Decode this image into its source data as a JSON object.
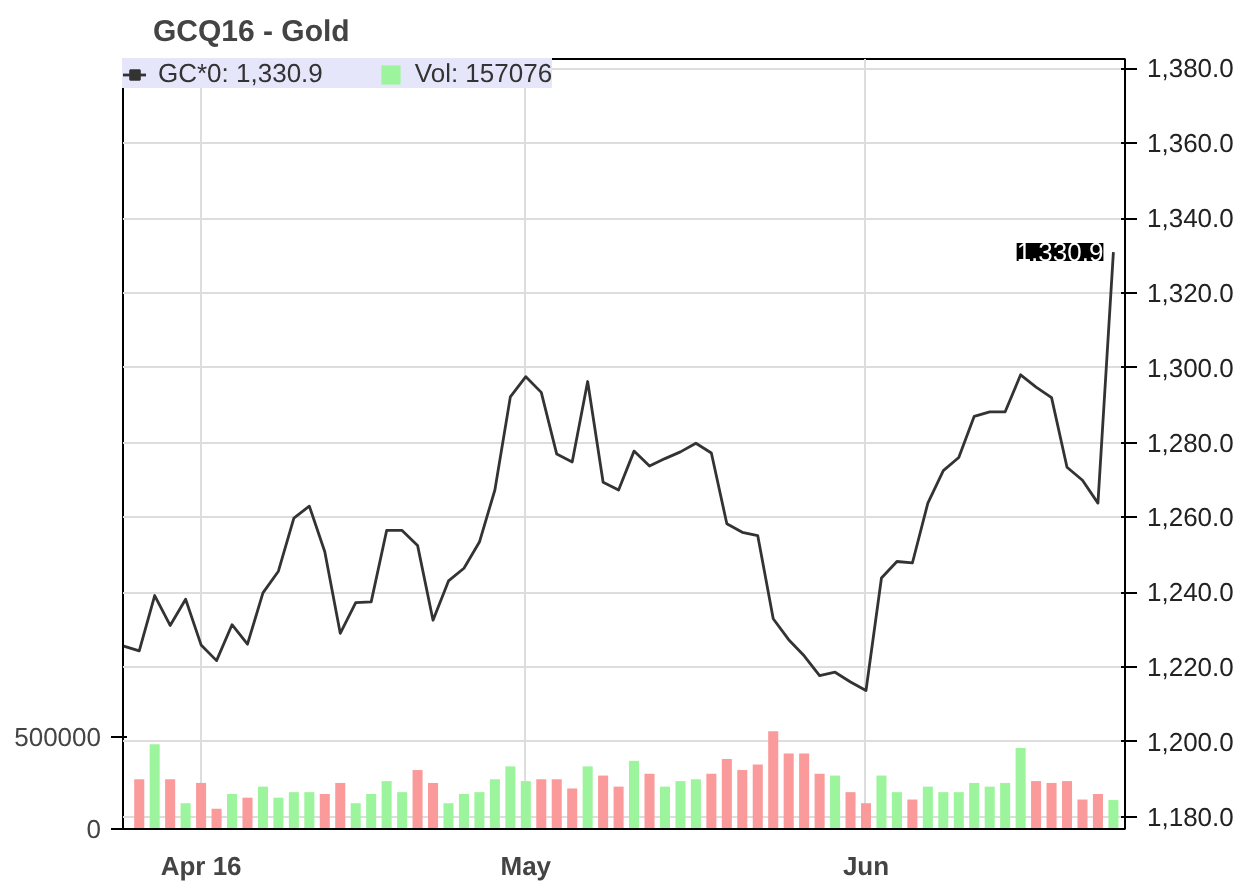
{
  "chart_data": {
    "type": "line",
    "title": "GCQ16 - Gold",
    "categories": [
      null,
      null,
      null,
      null,
      null,
      "Apr 16",
      null,
      null,
      null,
      null,
      null,
      null,
      null,
      null,
      null,
      null,
      null,
      null,
      null,
      null,
      null,
      null,
      null,
      null,
      null,
      null,
      "May",
      null,
      null,
      null,
      null,
      null,
      null,
      null,
      null,
      null,
      null,
      null,
      null,
      null,
      null,
      null,
      null,
      null,
      null,
      null,
      null,
      null,
      "Jun",
      null,
      null,
      null,
      null,
      null,
      null,
      null,
      null,
      null,
      null,
      null,
      null,
      null,
      null,
      null,
      null
    ],
    "series": [
      {
        "name": "GC*0: 1,330.9",
        "axis": "y",
        "color": "#333333",
        "values": [
          1225.6,
          1224.3,
          1239.1,
          1231.1,
          1238.1,
          1225.9,
          1221.7,
          1231.3,
          1226.1,
          1239.8,
          1245.6,
          1259.8,
          1263,
          1250.8,
          1229,
          1237.2,
          1237.4,
          1256.5,
          1256.5,
          1252.5,
          1232.5,
          1243,
          1246.4,
          1253.4,
          1267.3,
          1292.2,
          1297.6,
          1293.4,
          1276.9,
          1274.8,
          1296.3,
          1269.4,
          1267.3,
          1277.7,
          1273.7,
          1275.7,
          1277.5,
          1279.8,
          1277.2,
          1258.3,
          1256,
          1255.1,
          1232.9,
          1227.3,
          1223,
          1217.7,
          1218.6,
          1216,
          1213.7,
          1243.8,
          1248.2,
          1247.8,
          1263.8,
          1272.5,
          1276,
          1287,
          1288.2,
          1288.2,
          1298.1,
          1294.8,
          1292,
          1273.4,
          1269.9,
          1263.8,
          1330.9
        ]
      },
      {
        "name": "Vol: 157076",
        "type": "bar",
        "axis": "y2",
        "color": "#9cf59c",
        "values": [
          null,
          270000,
          460000,
          270000,
          140000,
          250000,
          110000,
          190000,
          170000,
          230000,
          170000,
          200000,
          200000,
          190000,
          250000,
          140000,
          190000,
          260000,
          200000,
          320000,
          250000,
          140000,
          190000,
          200000,
          270000,
          340000,
          260000,
          270000,
          270000,
          220000,
          340000,
          290000,
          230000,
          370000,
          300000,
          230000,
          260000,
          270000,
          300000,
          380000,
          320000,
          350000,
          530000,
          410000,
          410000,
          300000,
          290000,
          200000,
          140000,
          290000,
          200000,
          160000,
          230000,
          200000,
          200000,
          250000,
          230000,
          250000,
          440000,
          260000,
          250000,
          260000,
          160000,
          190000,
          157076
        ],
        "colors": [
          null,
          "#fa9a9a",
          "#9cf59c",
          "#fa9a9a",
          "#9cf59c",
          "#fa9a9a",
          "#fa9a9a",
          "#9cf59c",
          "#fa9a9a",
          "#9cf59c",
          "#9cf59c",
          "#9cf59c",
          "#9cf59c",
          "#fa9a9a",
          "#fa9a9a",
          "#9cf59c",
          "#9cf59c",
          "#9cf59c",
          "#9cf59c",
          "#fa9a9a",
          "#fa9a9a",
          "#9cf59c",
          "#9cf59c",
          "#9cf59c",
          "#9cf59c",
          "#9cf59c",
          "#9cf59c",
          "#fa9a9a",
          "#fa9a9a",
          "#fa9a9a",
          "#9cf59c",
          "#fa9a9a",
          "#fa9a9a",
          "#9cf59c",
          "#fa9a9a",
          "#9cf59c",
          "#9cf59c",
          "#9cf59c",
          "#fa9a9a",
          "#fa9a9a",
          "#fa9a9a",
          "#fa9a9a",
          "#fa9a9a",
          "#fa9a9a",
          "#fa9a9a",
          "#fa9a9a",
          "#9cf59c",
          "#fa9a9a",
          "#fa9a9a",
          "#9cf59c",
          "#9cf59c",
          "#fa9a9a",
          "#9cf59c",
          "#9cf59c",
          "#9cf59c",
          "#9cf59c",
          "#9cf59c",
          "#9cf59c",
          "#9cf59c",
          "#fa9a9a",
          "#fa9a9a",
          "#fa9a9a",
          "#fa9a9a",
          "#fa9a9a",
          "#9cf59c"
        ]
      }
    ],
    "ylim": [
      1176.7,
      1382.5
    ],
    "yticks": [
      {
        "value": 1180,
        "label": "1,180.0"
      },
      {
        "value": 1200,
        "label": "1,200.0"
      },
      {
        "value": 1220,
        "label": "1,220.0"
      },
      {
        "value": 1240,
        "label": "1,240.0"
      },
      {
        "value": 1260,
        "label": "1,260.0"
      },
      {
        "value": 1280,
        "label": "1,280.0"
      },
      {
        "value": 1300,
        "label": "1,300.0"
      },
      {
        "value": 1320,
        "label": "1,320.0"
      },
      {
        "value": 1340,
        "label": "1,340.0"
      },
      {
        "value": 1360,
        "label": "1,360.0"
      },
      {
        "value": 1380,
        "label": "1,380.0"
      }
    ],
    "y2lim": [
      0,
      4180000
    ],
    "y2ticks": [
      {
        "value": 0,
        "label": "0"
      },
      {
        "value": 500000,
        "label": "500000"
      }
    ],
    "annotations": [
      "1,330.9"
    ],
    "grid": true,
    "legend": "top left"
  }
}
